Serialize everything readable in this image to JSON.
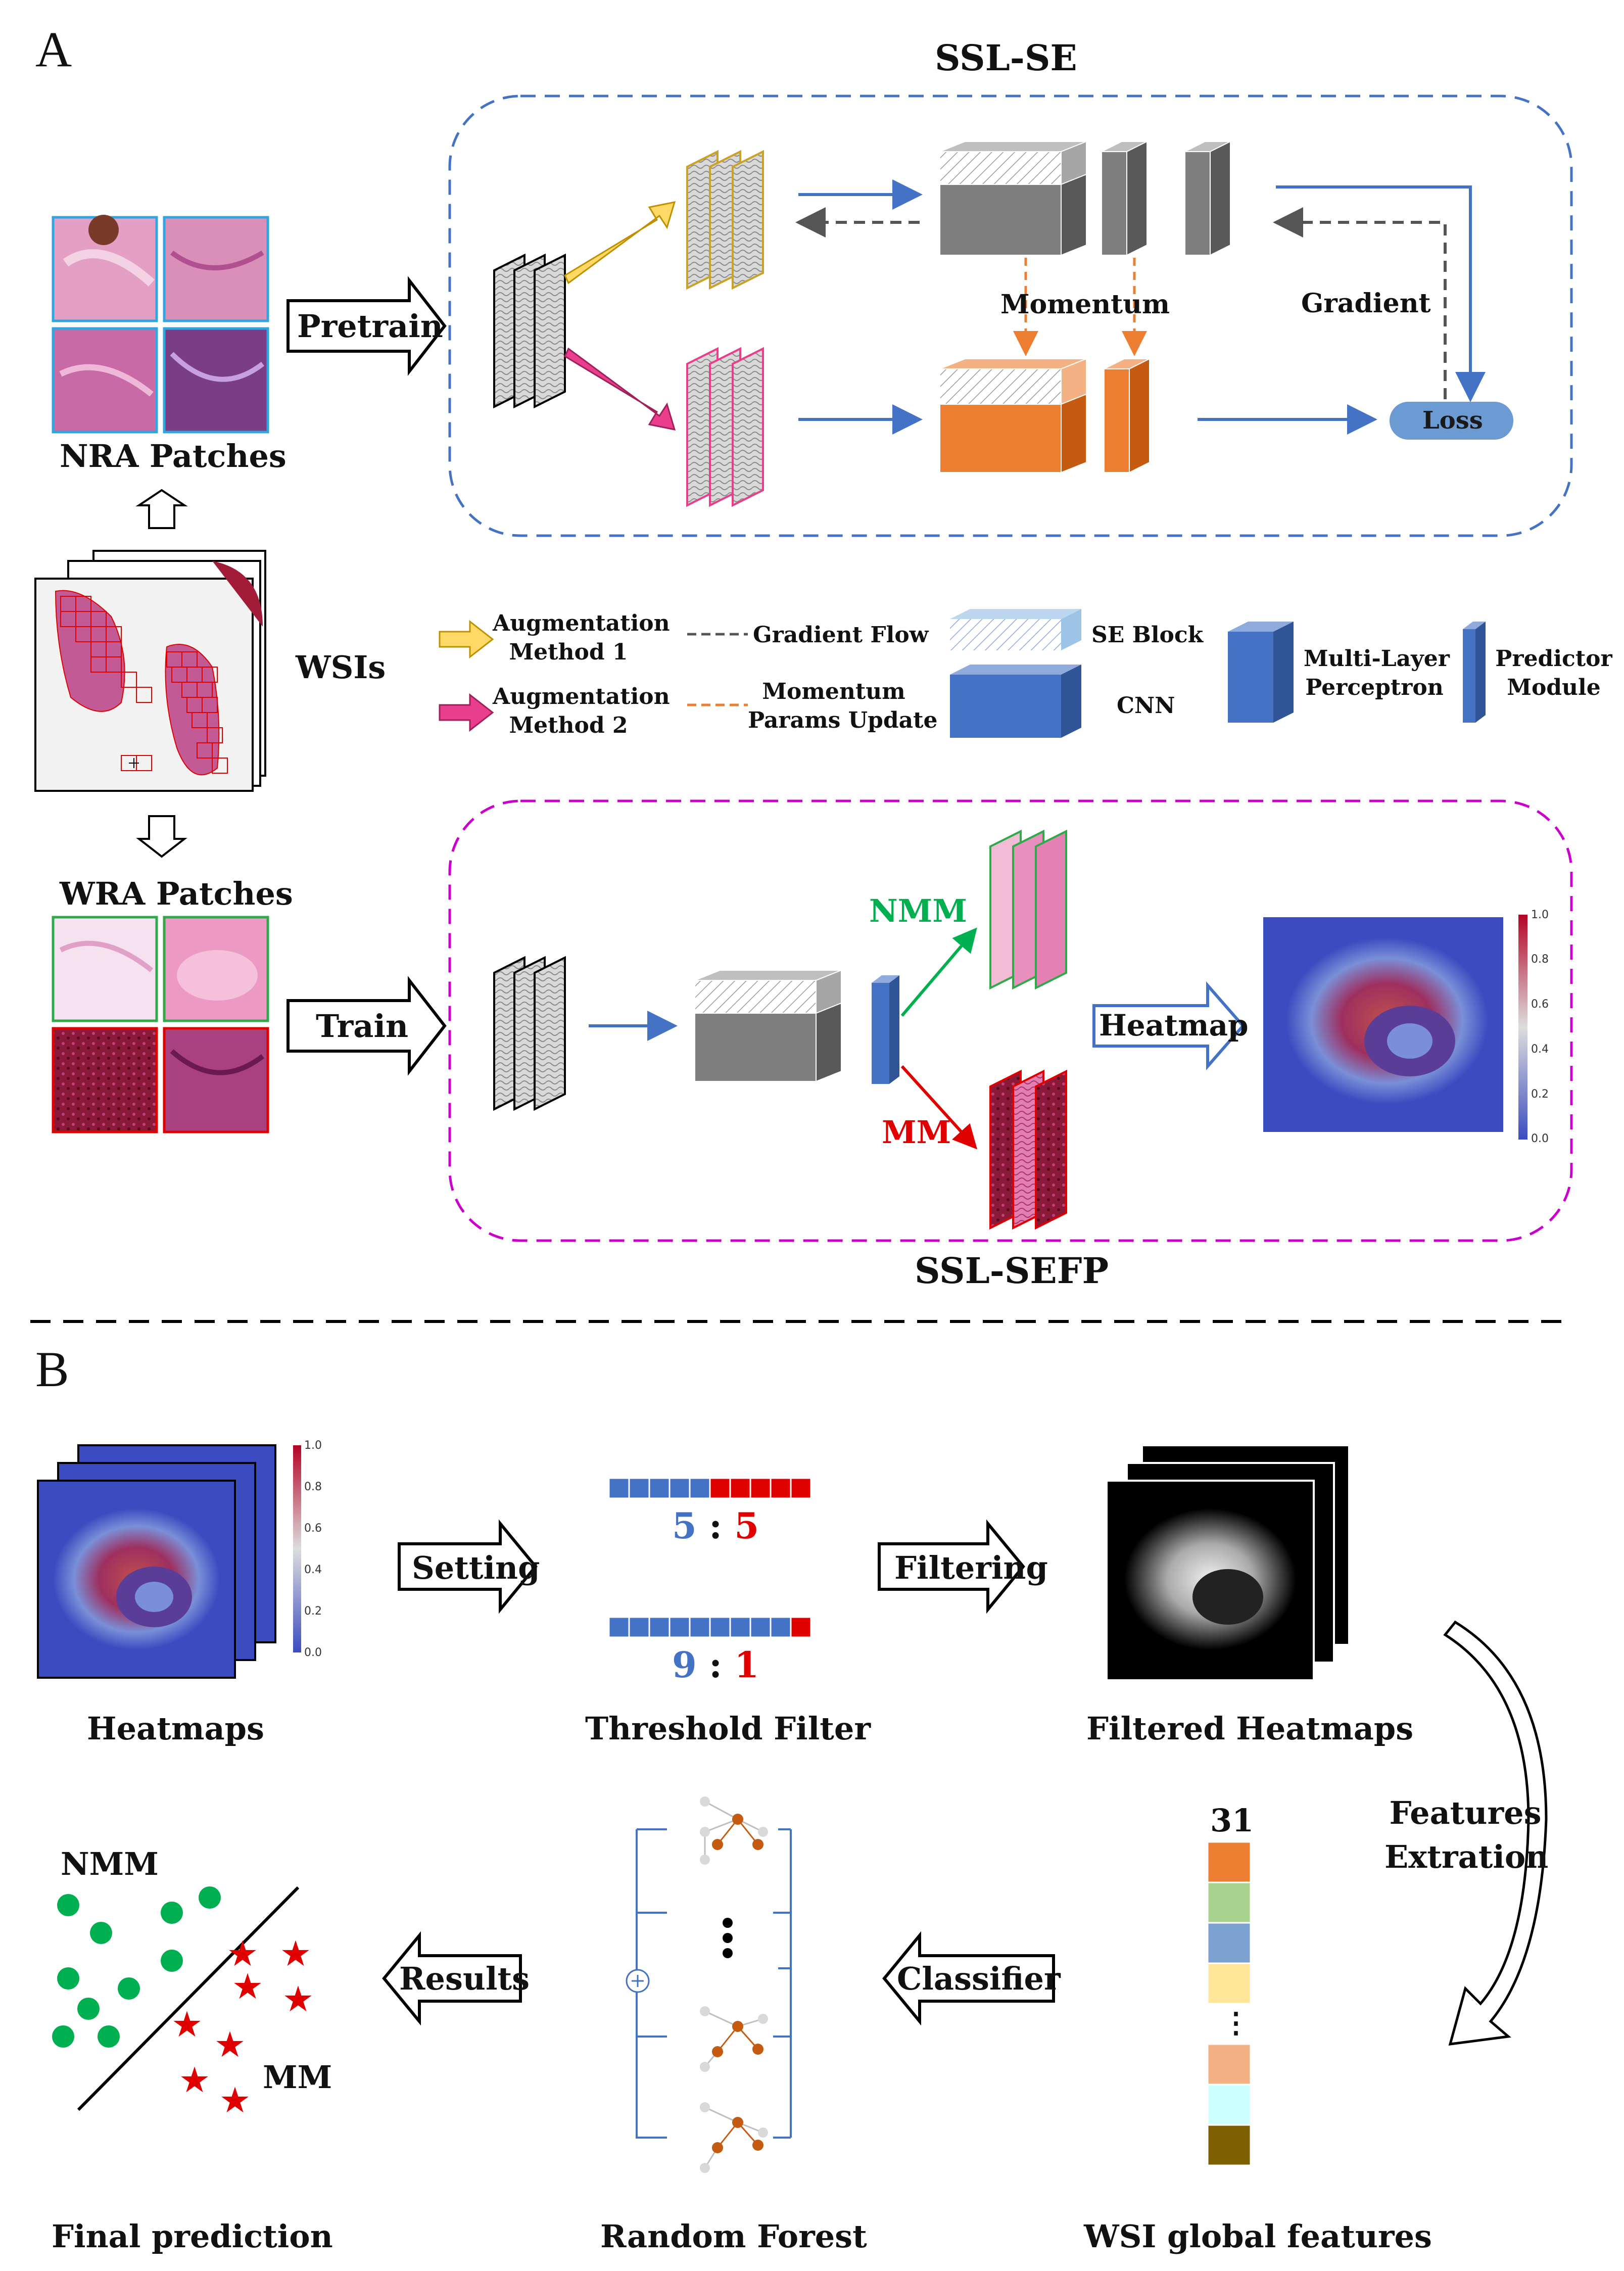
{
  "sections": {
    "a": "A",
    "b": "B"
  },
  "panel_a": {
    "ssl_se_title": "SSL-SE",
    "ssl_sefp_title": "SSL-SEFP",
    "nra_patches": "NRA Patches",
    "wra_patches": "WRA Patches",
    "wsis": "WSIs",
    "pretrain": "Pretrain",
    "train": "Train",
    "heatmap": "Heatmap",
    "momentum": "Momentum",
    "gradient": "Gradient",
    "loss": "Loss",
    "nmm": "NMM",
    "mm": "MM",
    "colorbar_ticks": [
      "1.0",
      "0.8",
      "0.6",
      "0.4",
      "0.2",
      "0.0"
    ]
  },
  "legend": {
    "aug1": "Augmentation\nMethod 1",
    "aug2": "Augmentation\nMethod 2",
    "gradient_flow": "Gradient Flow",
    "momentum_update": "Momentum\nParams Update",
    "se_block": "SE Block",
    "cnn": "CNN",
    "mlp": "Multi-Layer\nPerceptron",
    "predictor": "Predictor\nModule"
  },
  "panel_b": {
    "heatmaps": "Heatmaps",
    "setting": "Setting",
    "threshold_filter": "Threshold Filter",
    "ratio1_left": "5",
    "ratio1_sep": ":",
    "ratio1_right": "5",
    "ratio2_left": "9",
    "ratio2_sep": ":",
    "ratio2_right": "1",
    "filtering": "Filtering",
    "filtered_heatmaps": "Filtered Heatmaps",
    "features_extraction": "Features\nExtration",
    "feature_count": "31",
    "feature_dots": "⋮",
    "wsi_global_features": "WSI global features",
    "classifier": "Classifier",
    "random_forest": "Random Forest",
    "rf_dots": "⋮",
    "results": "Results",
    "final_prediction": "Final prediction",
    "nmm": "NMM",
    "mm": "MM",
    "colorbar_ticks": [
      "1.0",
      "0.8",
      "0.6",
      "0.4",
      "0.2",
      "0.0"
    ]
  },
  "colors": {
    "blue_dash": "#4472c4",
    "magenta_dash": "#cc00cc",
    "orange": "#ed7d31",
    "gray": "#7f7f7f",
    "cnn_blue": "#4472c4",
    "red": "#e00000",
    "green": "#00b050",
    "feature_bar": [
      "#ed7d31",
      "#a9d18e",
      "#7ca0cf",
      "#ffe699",
      "#f4b183",
      "#ccffff",
      "#7f6000"
    ]
  }
}
